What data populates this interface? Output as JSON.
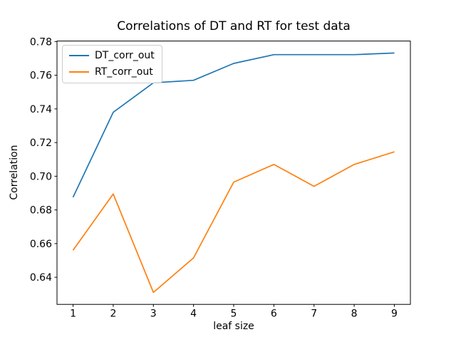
{
  "chart_data": {
    "type": "line",
    "title": "Correlations of DT and RT for test data",
    "xlabel": "leaf size",
    "ylabel": "Correlation",
    "x": [
      1,
      2,
      3,
      4,
      5,
      6,
      7,
      8,
      9
    ],
    "series": [
      {
        "name": "DT_corr_out",
        "color": "#1f77b4",
        "values": [
          0.6875,
          0.738,
          0.7555,
          0.757,
          0.767,
          0.7722,
          0.7722,
          0.7722,
          0.7732
        ]
      },
      {
        "name": "RT_corr_out",
        "color": "#ff7f0e",
        "values": [
          0.656,
          0.6895,
          0.631,
          0.6515,
          0.6965,
          0.707,
          0.694,
          0.707,
          0.7145
        ]
      }
    ],
    "xlim": [
      0.6,
      9.4
    ],
    "ylim": [
      0.6239,
      0.7803
    ],
    "xticks": [
      1,
      2,
      3,
      4,
      5,
      6,
      7,
      8,
      9
    ],
    "yticks": [
      0.64,
      0.66,
      0.68,
      0.7,
      0.72,
      0.74,
      0.76,
      0.78
    ],
    "grid": false,
    "legend_position": "upper left",
    "spine_color": "#000000",
    "background": "#ffffff"
  }
}
